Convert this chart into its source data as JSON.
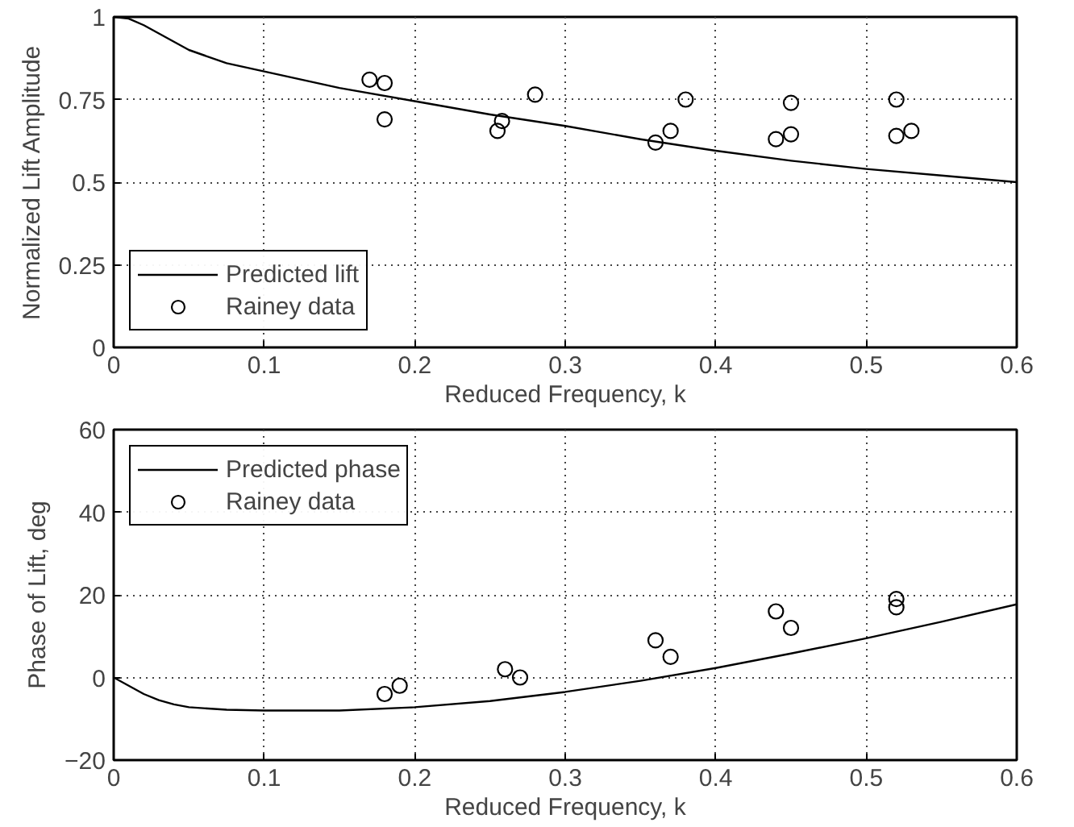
{
  "chart_data": [
    {
      "type": "line",
      "xlabel": "Reduced Frequency, k",
      "ylabel": "Normalized Lift Amplitude",
      "xlim": [
        0,
        0.6
      ],
      "ylim": [
        0,
        1
      ],
      "xticks": [
        0,
        0.1,
        0.2,
        0.3,
        0.4,
        0.5,
        0.6
      ],
      "yticks": [
        0,
        0.25,
        0.5,
        0.75,
        1
      ],
      "grid": true,
      "legend": "bottom left",
      "series": [
        {
          "name": "Predicted lift",
          "color": "#000000",
          "line_style": "solid",
          "x": [
            0,
            0.01,
            0.02,
            0.03,
            0.05,
            0.075,
            0.1,
            0.15,
            0.2,
            0.25,
            0.3,
            0.35,
            0.4,
            0.45,
            0.5,
            0.55,
            0.6
          ],
          "values": [
            1,
            0.995,
            0.975,
            0.95,
            0.9,
            0.86,
            0.835,
            0.785,
            0.745,
            0.705,
            0.67,
            0.63,
            0.595,
            0.565,
            0.54,
            0.52,
            0.5
          ]
        },
        {
          "name": "Rainey data",
          "type": "scatter",
          "color": "#000000",
          "marker": "circle",
          "x": [
            0.17,
            0.18,
            0.18,
            0.255,
            0.258,
            0.28,
            0.36,
            0.37,
            0.38,
            0.44,
            0.45,
            0.45,
            0.52,
            0.52,
            0.53
          ],
          "values": [
            0.81,
            0.8,
            0.69,
            0.655,
            0.685,
            0.765,
            0.62,
            0.655,
            0.75,
            0.63,
            0.645,
            0.74,
            0.75,
            0.64,
            0.655
          ]
        }
      ]
    },
    {
      "type": "line",
      "xlabel": "Reduced Frequency, k",
      "ylabel": "Phase of Lift, deg",
      "xlim": [
        0,
        0.6
      ],
      "ylim": [
        -20,
        60
      ],
      "xticks": [
        0,
        0.1,
        0.2,
        0.3,
        0.4,
        0.5,
        0.6
      ],
      "yticks": [
        {
          "value": -20,
          "label": "−20"
        },
        0,
        20,
        40,
        60
      ],
      "grid": true,
      "legend": "top left",
      "series": [
        {
          "name": "Predicted phase",
          "color": "#000000",
          "line_style": "solid",
          "x": [
            0,
            0.01,
            0.02,
            0.03,
            0.04,
            0.05,
            0.075,
            0.1,
            0.15,
            0.2,
            0.25,
            0.3,
            0.35,
            0.4,
            0.45,
            0.5,
            0.55,
            0.6
          ],
          "values": [
            0,
            -2,
            -4,
            -5.5,
            -6.5,
            -7.2,
            -7.8,
            -8,
            -8,
            -7.2,
            -5.7,
            -3.5,
            -0.8,
            2.3,
            5.8,
            9.5,
            13.5,
            17.7
          ]
        },
        {
          "name": "Rainey data",
          "type": "scatter",
          "color": "#000000",
          "marker": "circle",
          "x": [
            0.18,
            0.19,
            0.26,
            0.27,
            0.36,
            0.37,
            0.44,
            0.45,
            0.52,
            0.52
          ],
          "values": [
            -4,
            -2,
            2,
            0,
            9,
            5,
            16,
            12,
            19,
            17
          ]
        }
      ]
    }
  ]
}
